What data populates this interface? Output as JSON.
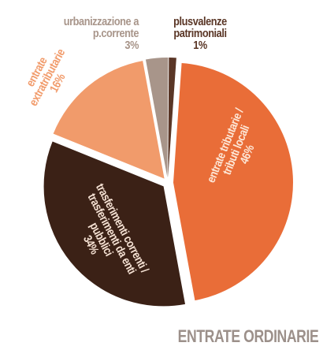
{
  "chart_data": {
    "type": "pie",
    "title": "ENTRATE ORDINARIE",
    "categories": [
      "entrate tributarie / tributi locali",
      "trasferimenti correnti / trasferimenti da enti pubblici",
      "entrate extratributarie",
      "urbanizzazione a p.corrente",
      "plusvalenze patrimoniali"
    ],
    "values": [
      46,
      34,
      16,
      3,
      1
    ],
    "value_labels": [
      "46%",
      "34%",
      "16%",
      "3%",
      "1%"
    ],
    "colors": [
      "#e96d38",
      "#3b2116",
      "#f19b6b",
      "#a8958a",
      "#5a3626"
    ]
  }
}
